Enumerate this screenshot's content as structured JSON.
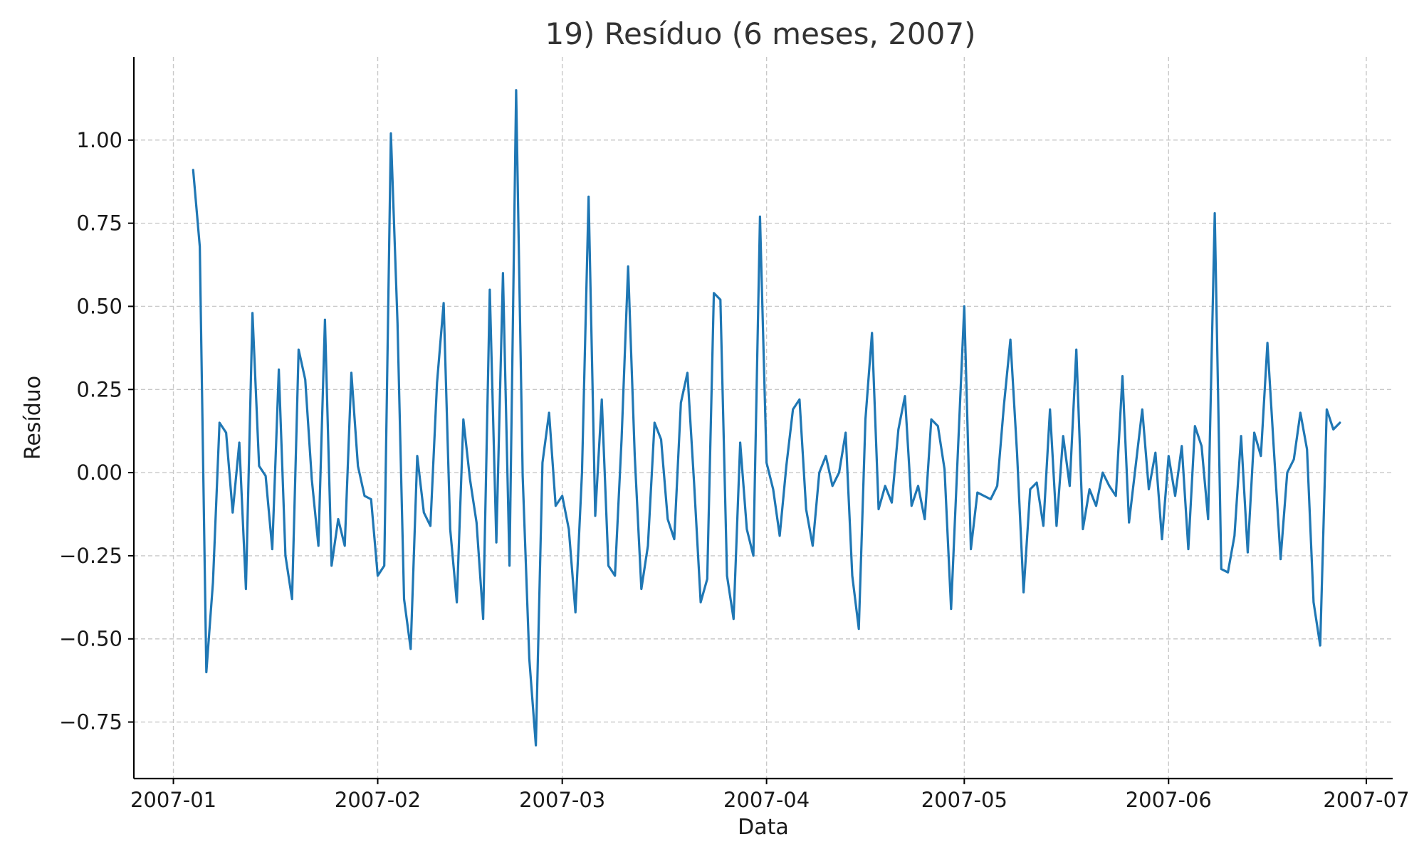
{
  "chart_data": {
    "type": "line",
    "title": "19) Resíduo (6 meses, 2007)",
    "xlabel": "Data",
    "ylabel": "Resíduo",
    "x_type": "date",
    "xlim": [
      "2006-12-26",
      "2007-07-05"
    ],
    "ylim": [
      -0.92,
      1.25
    ],
    "grid": true,
    "color": "#1f77b4",
    "x_ticks": [
      {
        "date": "2007-01-01",
        "label": "2007-01"
      },
      {
        "date": "2007-02-01",
        "label": "2007-02"
      },
      {
        "date": "2007-03-01",
        "label": "2007-03"
      },
      {
        "date": "2007-04-01",
        "label": "2007-04"
      },
      {
        "date": "2007-05-01",
        "label": "2007-05"
      },
      {
        "date": "2007-06-01",
        "label": "2007-06"
      },
      {
        "date": "2007-07-01",
        "label": "2007-07"
      }
    ],
    "y_ticks": [
      {
        "value": 1.0,
        "label": "1.00"
      },
      {
        "value": 0.75,
        "label": "0.75"
      },
      {
        "value": 0.5,
        "label": "0.50"
      },
      {
        "value": 0.25,
        "label": "0.25"
      },
      {
        "value": 0.0,
        "label": "0.00"
      },
      {
        "value": -0.25,
        "label": "−0.25"
      },
      {
        "value": -0.5,
        "label": "−0.50"
      },
      {
        "value": -0.75,
        "label": "−0.75"
      }
    ],
    "series": [
      {
        "x_start": "2007-01-04",
        "x_step_days": 1,
        "values": [
          0.91,
          0.68,
          -0.6,
          -0.33,
          0.15,
          0.12,
          -0.12,
          0.09,
          -0.35,
          0.48,
          0.02,
          -0.01,
          -0.23,
          0.31,
          -0.25,
          -0.38,
          0.37,
          0.28,
          -0.02,
          -0.22,
          0.46,
          -0.28,
          -0.14,
          -0.22,
          0.3,
          0.02,
          -0.07,
          -0.08,
          -0.31,
          -0.28,
          1.02,
          0.45,
          -0.38,
          -0.53,
          0.05,
          -0.12,
          -0.16,
          0.27,
          0.51,
          -0.17,
          -0.39,
          0.16,
          -0.02,
          -0.15,
          -0.44,
          0.55,
          -0.21,
          0.6,
          -0.28,
          1.15,
          -0.01,
          -0.56,
          -0.82,
          0.03,
          0.18,
          -0.1,
          -0.07,
          -0.17,
          -0.42,
          0.0,
          0.83,
          -0.13,
          0.22,
          -0.28,
          -0.31,
          0.1,
          0.62,
          0.05,
          -0.35,
          -0.22,
          0.15,
          0.1,
          -0.14,
          -0.2,
          0.21,
          0.3,
          -0.03,
          -0.39,
          -0.32,
          0.54,
          0.52,
          -0.31,
          -0.44,
          0.09,
          -0.17,
          -0.25,
          0.77,
          0.03,
          -0.05,
          -0.19,
          0.02,
          0.19,
          0.22,
          -0.11,
          -0.22,
          0.0,
          0.05,
          -0.04,
          0.0,
          0.12,
          -0.31,
          -0.47,
          0.16,
          0.42,
          -0.11,
          -0.04,
          -0.09,
          0.13,
          0.23,
          -0.1,
          -0.04,
          -0.14,
          0.16,
          0.14,
          0.01,
          -0.41,
          0.05,
          0.5,
          -0.23,
          -0.06,
          -0.07,
          -0.08,
          -0.04,
          0.2,
          0.4,
          0.06,
          -0.36,
          -0.05,
          -0.03,
          -0.16,
          0.19,
          -0.16,
          0.11,
          -0.04,
          0.37,
          -0.17,
          -0.05,
          -0.1,
          0.0,
          -0.04,
          -0.07,
          0.29,
          -0.15,
          0.02,
          0.19,
          -0.05,
          0.06,
          -0.2,
          0.05,
          -0.07,
          0.08,
          -0.23,
          0.14,
          0.08,
          -0.14,
          0.78,
          -0.29,
          -0.3,
          -0.19,
          0.11,
          -0.24,
          0.12,
          0.05,
          0.39,
          0.06,
          -0.26,
          0.0,
          0.04,
          0.18,
          0.07,
          -0.39,
          -0.52,
          0.19,
          0.13,
          0.15
        ]
      }
    ]
  }
}
